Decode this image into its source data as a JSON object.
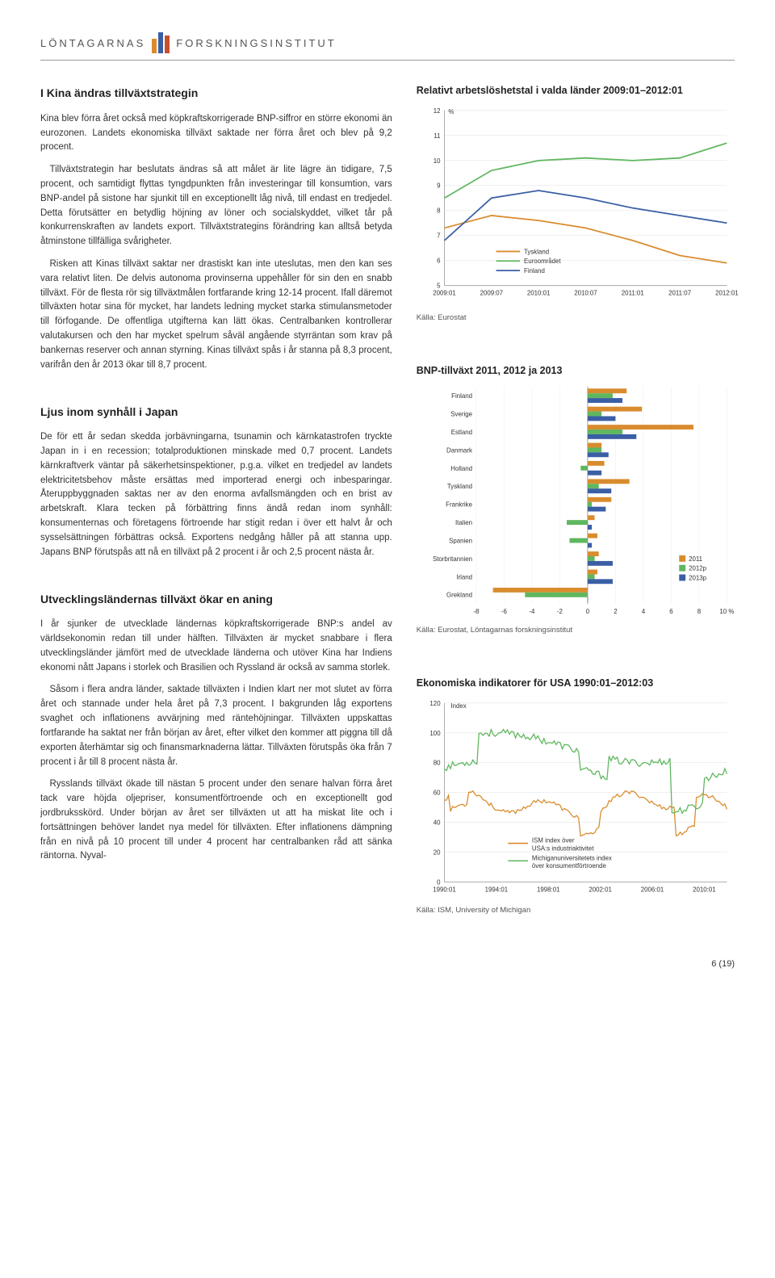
{
  "header": {
    "left": "LÖNTAGARNAS",
    "right": "FORSKNINGSINSTITUT",
    "logo_colors": [
      "#d98c2e",
      "#3a5fa5",
      "#c94f2e"
    ],
    "logo_heights": [
      18,
      26,
      22
    ]
  },
  "section1": {
    "title": "I Kina ändras tillväxtstrategin",
    "p1": "Kina blev förra året också med köpkraftskorrigerade BNP-siffror en större ekonomi än eurozonen. Landets ekonomiska tillväxt saktade ner förra året och blev på 9,2 procent.",
    "p2": "Tillväxtstrategin har beslutats ändras så att målet är lite lägre än tidigare, 7,5 procent, och samtidigt flyttas tyngdpunkten från investeringar till konsumtion, vars BNP-andel på sistone har sjunkit till en exceptionellt låg nivå, till endast en tredjedel. Detta förutsätter en betydlig höjning av löner och socialskyddet, vilket tår på konkurrenskraften av landets export. Tillväxtstrategins förändring kan alltså betyda åtminstone tillfälliga svårigheter.",
    "p3": "Risken att Kinas tillväxt saktar ner drastiskt kan inte uteslutas, men den kan ses vara relativt liten. De delvis autonoma provinserna uppehåller för sin den en snabb tillväxt. För de flesta rör sig tillväxtmålen fortfarande kring 12-14 procent. Ifall däremot tillväxten hotar sina för mycket, har landets ledning mycket starka stimulansmetoder till förfogande. De offentliga utgifterna kan lätt ökas. Centralbanken kontrollerar valutakursen och den har mycket spelrum såväl angående styrräntan som krav på bankernas reserver och annan styrning. Kinas tillväxt spås i år stanna på 8,3 procent, varifrån den år 2013 ökar till 8,7 procent."
  },
  "section2": {
    "title": "Ljus inom synhåll i Japan",
    "p1": "De för ett år sedan skedda jorbävningarna, tsunamin och kärnkatastrofen tryckte Japan in i en recession; totalproduktionen minskade med 0,7 procent. Landets kärnkraftverk väntar på säkerhetsinspektioner, p.g.a. vilket en tredjedel av landets elektricitetsbehov måste ersättas med importerad energi och inbesparingar. Återuppbyggnaden saktas ner av den enorma avfallsmängden och en brist av arbetskraft. Klara tecken på förbättring finns ändå redan inom synhåll: konsumenternas och företagens förtroende har stigit redan i över ett halvt år och sysselsättningen förbättras också. Exportens nedgång håller på att stanna upp. Japans BNP förutspås att nå en tillväxt på 2 procent i år och 2,5 procent nästa år."
  },
  "section3": {
    "title": "Utvecklingsländernas tillväxt ökar en aning",
    "p1": "I år sjunker de utvecklade ländernas köpkraftskorrigerade BNP:s andel av världsekonomin redan till under hälften. Tillväxten är mycket snabbare i flera utvecklingsländer jämfört med de utvecklade länderna och utöver Kina har Indiens ekonomi nått Japans i storlek och Brasilien och Ryssland är också av samma storlek.",
    "p2": "Såsom i flera andra länder, saktade tillväxten i Indien klart ner mot slutet av förra året och stannade under hela året på 7,3 procent. I bakgrunden låg exportens svaghet och inflationens avvärjning med räntehöjningar. Tillväxten uppskattas fortfarande ha saktat ner från början av året, efter vilket den kommer att piggna till då exporten återhämtar sig och finansmarknaderna lättar. Tillväxten förutspås öka från 7 procent i år till 8 procent nästa år.",
    "p3": "Rysslands tillväxt ökade till nästan 5 procent under den senare halvan förra året tack vare höjda oljepriser, konsumentförtroende och en exceptionellt god jordbruksskörd. Under början av året ser tillväxten ut att ha miskat lite och i fortsättningen behöver landet nya medel för tillväxten. Efter inflationens dämpning från en nivå på 10 procent till under 4 procent har centralbanken råd att sänka räntorna. Nyval-"
  },
  "chart1": {
    "title": "Relativt arbetslöshetstal i valda länder 2009:01–2012:01",
    "type": "line",
    "ylabel": "%",
    "ylim": [
      5,
      12
    ],
    "yticks": [
      5,
      6,
      7,
      8,
      9,
      10,
      11,
      12
    ],
    "xlabels": [
      "2009:01",
      "2009:07",
      "2010:01",
      "2010:07",
      "2011:01",
      "2011:07",
      "2012:01"
    ],
    "series": [
      {
        "name": "Tyskland",
        "color": "#d98c2e",
        "values": [
          7.3,
          7.8,
          7.6,
          7.3,
          6.8,
          6.2,
          5.9
        ]
      },
      {
        "name": "Euroområdet",
        "color": "#5fb75f",
        "values": [
          8.5,
          9.6,
          10.0,
          10.1,
          10.0,
          10.1,
          10.7
        ]
      },
      {
        "name": "Finland",
        "color": "#3a5fa5",
        "values": [
          6.8,
          8.5,
          8.8,
          8.5,
          8.1,
          7.8,
          7.5
        ]
      }
    ],
    "source": "Källa: Eurostat",
    "font_size_axis": 8,
    "grid_color": "#e0e0e0",
    "line_width": 1.8
  },
  "chart2": {
    "title": "BNP-tillväxt 2011, 2012 ja 2013",
    "type": "horizontal-bar",
    "xlim": [
      -8,
      10
    ],
    "xticks": [
      -8,
      -6,
      -4,
      -2,
      0,
      2,
      4,
      6,
      8,
      10
    ],
    "xlabel_suffix": "%",
    "countries": [
      "Finland",
      "Sverige",
      "Estland",
      "Danmark",
      "Holland",
      "Tyskland",
      "Frankrike",
      "Italien",
      "Spanien",
      "Storbritannien",
      "Irland",
      "Grekland"
    ],
    "legend": [
      {
        "name": "2011",
        "color": "#d98c2e"
      },
      {
        "name": "2012p",
        "color": "#5fb75f"
      },
      {
        "name": "2013p",
        "color": "#3a5fa5"
      }
    ],
    "values": {
      "2011": [
        2.8,
        3.9,
        7.6,
        1.0,
        1.2,
        3.0,
        1.7,
        0.5,
        0.7,
        0.8,
        0.7,
        -6.8
      ],
      "2012p": [
        1.8,
        1.0,
        2.5,
        1.0,
        -0.5,
        0.8,
        0.3,
        -1.5,
        -1.3,
        0.5,
        0.5,
        -4.5
      ],
      "2013p": [
        2.5,
        2.0,
        3.5,
        1.5,
        1.0,
        1.7,
        1.3,
        0.3,
        0.3,
        1.8,
        1.8,
        0.0
      ]
    },
    "source": "Källa: Eurostat, Löntagarnas forskningsinstitut",
    "font_size_axis": 8
  },
  "chart3": {
    "title": "Ekonomiska indikatorer för USA 1990:01–2012:03",
    "type": "line",
    "ylabel": "Index",
    "ylim": [
      0,
      120
    ],
    "yticks": [
      0,
      20,
      40,
      60,
      80,
      100,
      120
    ],
    "xlabels": [
      "1990:01",
      "1994:01",
      "1998:01",
      "2002:01",
      "2006:01",
      "2010:01"
    ],
    "series": [
      {
        "name": "ISM index över USA:s industriaktivitet",
        "color": "#d98c2e",
        "short": "ISM"
      },
      {
        "name": "Michiganuniversitetets index över konsumentförtroende",
        "color": "#5fb75f",
        "short": "Michigan"
      }
    ],
    "source": "Källa: ISM, University of Michigan",
    "font_size_axis": 8,
    "grid_color": "#e0e0e0"
  },
  "pagenum": "6 (19)"
}
